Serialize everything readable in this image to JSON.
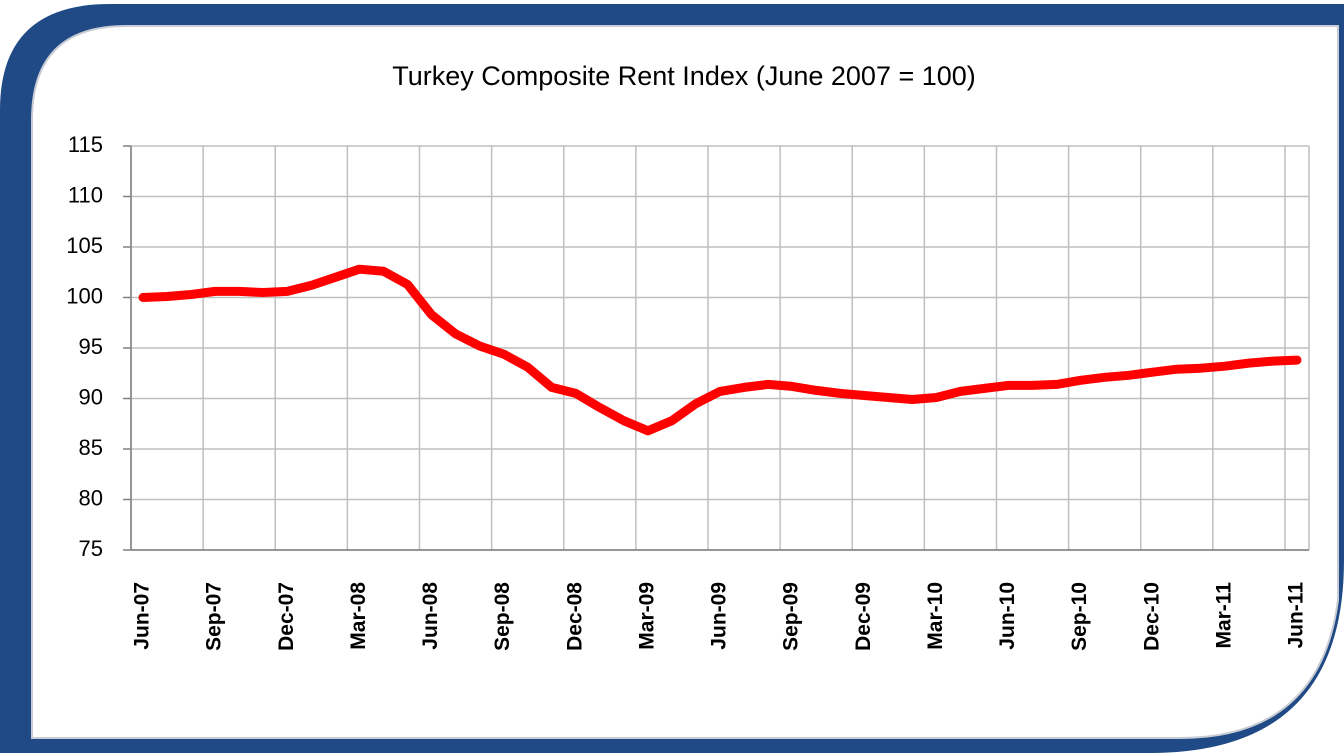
{
  "chart_data": {
    "type": "line",
    "title": "Turkey Composite Rent Index (June 2007 = 100)",
    "categories": [
      "Jun-07",
      null,
      null,
      "Sep-07",
      null,
      null,
      "Dec-07",
      null,
      null,
      "Mar-08",
      null,
      null,
      "Jun-08",
      null,
      null,
      "Sep-08",
      null,
      null,
      "Dec-08",
      null,
      null,
      "Mar-09",
      null,
      null,
      "Jun-09",
      null,
      null,
      "Sep-09",
      null,
      null,
      "Dec-09",
      null,
      null,
      "Mar-10",
      null,
      null,
      "Jun-10",
      null,
      null,
      "Sep-10",
      null,
      null,
      "Dec-10",
      null,
      null,
      "Mar-11",
      null,
      null,
      "Jun-11"
    ],
    "series": [
      {
        "color": "#ff0000",
        "values": [
          100,
          100.1,
          100.3,
          100.6,
          100.6,
          100.5,
          100.6,
          101.2,
          102,
          102.8,
          102.6,
          101.3,
          98.3,
          96.4,
          95.2,
          94.4,
          93.1,
          91.1,
          90.5,
          89.1,
          87.8,
          86.8,
          87.8,
          89.5,
          90.7,
          91.1,
          91.4,
          91.2,
          90.8,
          90.5,
          90.3,
          90.1,
          89.9,
          90.1,
          90.7,
          91,
          91.3,
          91.3,
          91.4,
          91.8,
          92.1,
          92.3,
          92.6,
          92.9,
          93,
          93.2,
          93.5,
          93.7,
          93.8
        ]
      }
    ],
    "ylim": [
      75,
      115
    ],
    "yticks": [
      75,
      80,
      85,
      90,
      95,
      100,
      105,
      110,
      115
    ],
    "grid": true
  }
}
